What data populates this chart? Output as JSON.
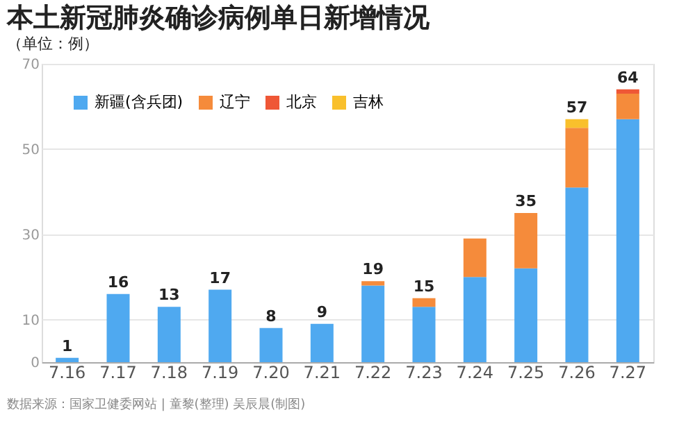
{
  "chart_data": {
    "type": "bar",
    "title": "本土新冠肺炎确诊病例单日新增情况",
    "subtitle": "（单位：例）",
    "categories": [
      "7.16",
      "7.17",
      "7.18",
      "7.19",
      "7.20",
      "7.21",
      "7.22",
      "7.23",
      "7.24",
      "7.25",
      "7.26",
      "7.27"
    ],
    "stacked": true,
    "series": [
      {
        "name": "新疆(含兵团)",
        "color": "#4fa9f0",
        "values": [
          1,
          16,
          13,
          17,
          8,
          9,
          18,
          13,
          20,
          22,
          41,
          57
        ]
      },
      {
        "name": "辽宁",
        "color": "#f58b3b",
        "values": [
          0,
          0,
          0,
          0,
          0,
          0,
          1,
          2,
          9,
          13,
          14,
          6
        ]
      },
      {
        "name": "北京",
        "color": "#ef5736",
        "values": [
          0,
          0,
          0,
          0,
          0,
          0,
          0,
          0,
          0,
          0,
          0,
          1
        ]
      },
      {
        "name": "吉林",
        "color": "#f9c02c",
        "values": [
          0,
          0,
          0,
          0,
          0,
          0,
          0,
          0,
          0,
          0,
          2,
          0
        ]
      }
    ],
    "totals": [
      "1",
      "16",
      "13",
      "17",
      "8",
      "9",
      "19",
      "15",
      null,
      "35",
      "57",
      "64"
    ],
    "ylim": [
      0,
      70
    ],
    "yticks": [
      0,
      10,
      30,
      50,
      70
    ],
    "grid": "y",
    "legend": "top left",
    "annotations": [
      "数据来源：国家卫健委网站 | 童黎(整理) 吴辰晨(制图)"
    ]
  }
}
